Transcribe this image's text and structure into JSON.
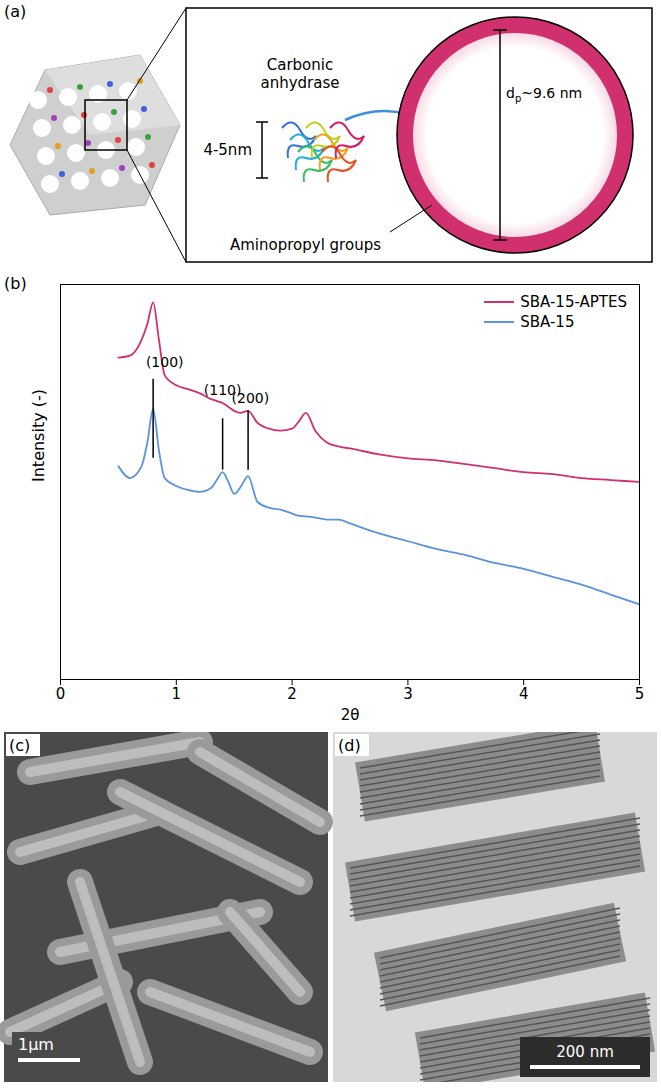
{
  "panels": {
    "a": {
      "panel_label": "(a)",
      "protein_label": "Carbonic anhydrase",
      "protein_size": "4-5nm",
      "pore_label": [
        "d",
        "p",
        "~9.6 nm"
      ],
      "wall_label": "Aminopropyl groups"
    },
    "c": {
      "panel_label": "(c)",
      "scale_bar": "1μm"
    },
    "d": {
      "panel_label": "(d)",
      "scale_bar": "200 nm"
    }
  },
  "chart_data": {
    "type": "line",
    "panel_label": "(b)",
    "x_label": "2θ",
    "y_label": "Intensity (-)",
    "x": [
      0.5,
      0.6,
      0.7,
      0.75,
      0.8,
      0.85,
      0.9,
      1.0,
      1.1,
      1.2,
      1.3,
      1.35,
      1.4,
      1.45,
      1.5,
      1.55,
      1.62,
      1.7,
      1.8,
      1.9,
      2.0,
      2.05,
      2.12,
      2.2,
      2.3,
      2.4,
      2.5,
      2.75,
      3,
      3.25,
      3.5,
      3.75,
      4,
      4.25,
      4.5,
      4.75,
      5
    ],
    "series": [
      {
        "name": "SBA-15-APTES",
        "color": "#d1306e",
        "values": [
          81.5,
          82,
          86,
          90,
          95.5,
          86,
          77,
          74.5,
          73.5,
          72.5,
          71,
          70.5,
          70,
          69,
          68,
          67.5,
          68,
          65,
          63.5,
          63,
          63.5,
          65,
          67.5,
          63,
          60,
          59,
          58.5,
          57,
          56,
          55.5,
          54.5,
          53.5,
          52.5,
          52,
          51,
          50.5,
          50
        ]
      },
      {
        "name": "SBA-15",
        "color": "#5b93e0",
        "values": [
          54,
          51,
          54,
          60,
          68.5,
          58,
          51,
          49,
          48,
          47.5,
          48.5,
          50.5,
          52.5,
          50,
          47,
          48.5,
          51.5,
          45,
          43.5,
          43,
          42,
          41.5,
          41.3,
          41,
          40.5,
          40.5,
          39.5,
          37,
          35,
          33,
          31.5,
          29.5,
          28,
          26,
          24,
          21.5,
          19
        ]
      }
    ],
    "annotations": [
      {
        "text": "(100)",
        "x": 0.8,
        "label_x": 0.9,
        "label_y": 79,
        "line": [
          56,
          76
        ]
      },
      {
        "text": "(110)",
        "x": 1.4,
        "label_x": 1.4,
        "label_y": 72,
        "line": [
          53,
          66
        ]
      },
      {
        "text": "(200)",
        "x": 1.62,
        "label_x": 1.64,
        "label_y": 70,
        "line": [
          53,
          68
        ]
      }
    ],
    "xlim": [
      0,
      5
    ],
    "xticks": [
      0,
      1,
      2,
      3,
      4,
      5
    ],
    "ylim": [
      0,
      100
    ],
    "tick_labels": "x",
    "legend": "upper right",
    "grid": false
  }
}
